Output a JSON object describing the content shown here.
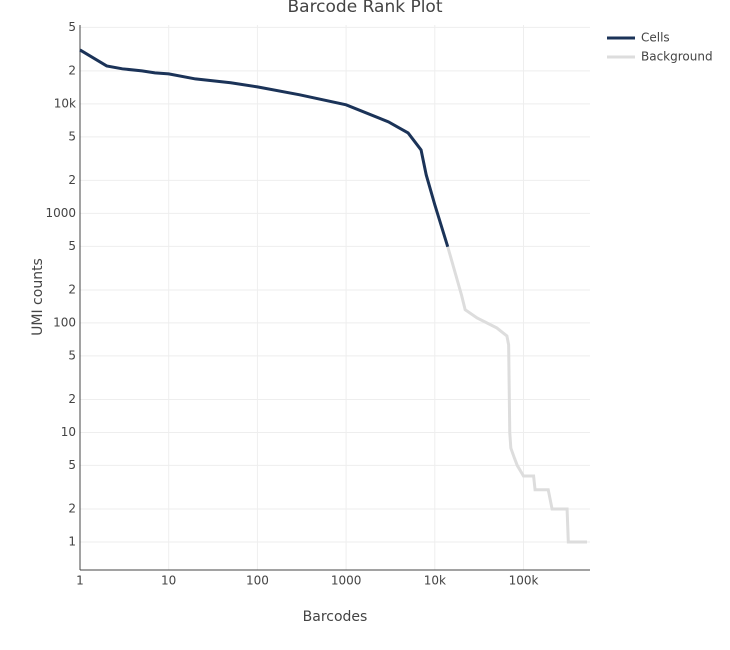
{
  "chart_data": {
    "type": "line",
    "title": "Barcode Rank Plot",
    "x_label": "Barcodes",
    "y_label": "UMI counts",
    "x_log": true,
    "y_log": true,
    "grid": true,
    "xlim": [
      1,
      562000
    ],
    "ylim": [
      0.555,
      52500
    ],
    "xticks": [
      1,
      10,
      100,
      1000,
      {
        "value": 10000,
        "label": "10k"
      },
      {
        "value": 100000,
        "label": "100k"
      }
    ],
    "yticks": [
      1,
      2,
      5,
      10,
      {
        "value": 20,
        "label": "2"
      },
      {
        "value": 50,
        "label": "5"
      },
      100,
      {
        "value": 200,
        "label": "2"
      },
      {
        "value": 500,
        "label": "5"
      },
      1000,
      {
        "value": 2000,
        "label": "2"
      },
      {
        "value": 5000,
        "label": "5"
      },
      {
        "value": 10000,
        "label": "10k"
      },
      {
        "value": 20000,
        "label": "2"
      },
      {
        "value": 50000,
        "label": "5"
      }
    ],
    "legend": "top-right",
    "series": [
      {
        "name": "Cells",
        "color": "#1b3358",
        "x": [
          1,
          2,
          3,
          5,
          7,
          10,
          20,
          50,
          100,
          300,
          1000,
          3000,
          5000,
          7000,
          8000,
          10000,
          14000
        ],
        "values": [
          31100,
          22200,
          20900,
          20000,
          19200,
          18800,
          16900,
          15600,
          14300,
          12100,
          9800,
          6850,
          5430,
          3800,
          2250,
          1200,
          495
        ]
      },
      {
        "name": "Background",
        "color": "#dddddd",
        "x": [
          14000,
          20000,
          22000,
          30000,
          50000,
          65000,
          68000,
          70000,
          72000,
          78000,
          85000,
          100000,
          130000,
          135000,
          190000,
          210000,
          310000,
          320000,
          520000
        ],
        "values": [
          495,
          180,
          132,
          111,
          90,
          76,
          63,
          10,
          7.2,
          6,
          5,
          4,
          4,
          3,
          3,
          2,
          2,
          1,
          1
        ]
      }
    ]
  }
}
